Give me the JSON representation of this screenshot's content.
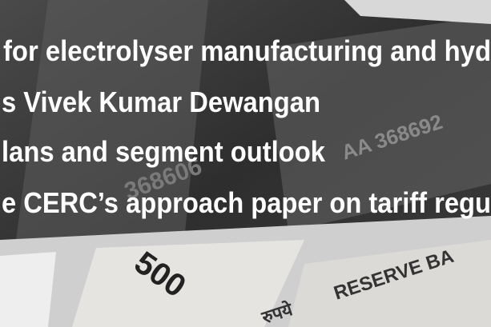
{
  "headlines": [
    "for electrolyser manufacturing and hyd",
    "s Vivek Kumar Dewangan",
    "lans and segment outlook",
    "e CERC’s approach paper on tariff regu"
  ],
  "banknotes": {
    "serials": [
      "368606",
      "AA 368692"
    ],
    "denomination": "500",
    "issuer": "RESERVE BA",
    "rupee_word": "रुपये"
  }
}
